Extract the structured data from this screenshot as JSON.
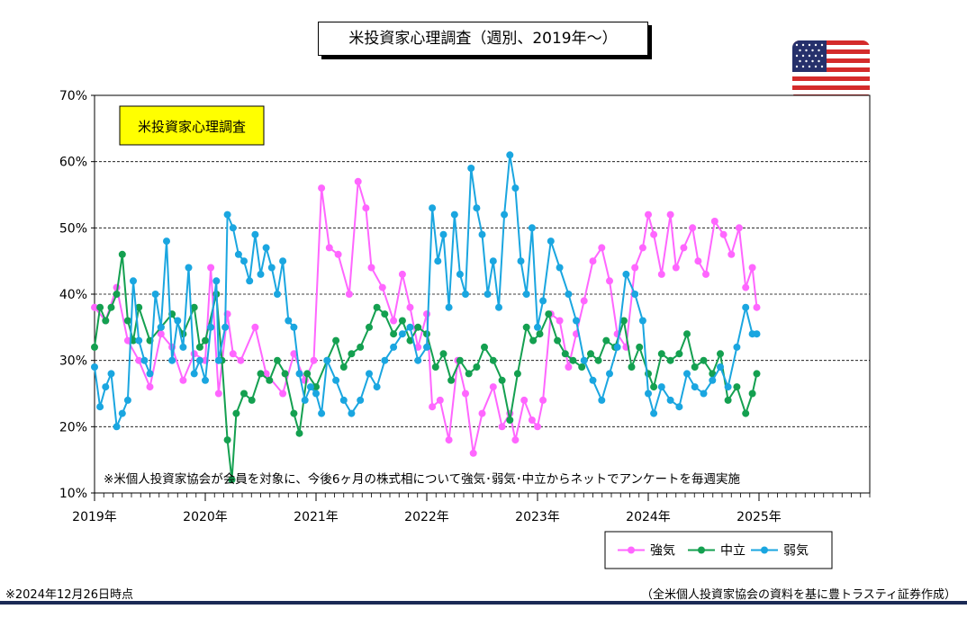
{
  "title": "米投資家心理調査（週別、2019年～）",
  "footer": {
    "date_note": "※2024年12月26日時点",
    "source_note": "（全米個人投資家協会の資料を基に豊トラスティ証券作成）"
  },
  "chart_data": {
    "type": "line",
    "inner_label": "米投資家心理調査",
    "annotation": "※米個人投資家協会が会員を対象に、今後6ヶ月の株式相について強気･弱気･中立からネットでアンケートを毎週実施",
    "ylim": [
      10,
      70
    ],
    "y_ticks": [
      10,
      20,
      30,
      40,
      50,
      60,
      70
    ],
    "y_tick_labels": [
      "10%",
      "20%",
      "30%",
      "40%",
      "50%",
      "60%",
      "70%"
    ],
    "x_range": [
      2019,
      2026
    ],
    "x_ticks": [
      2019,
      2020,
      2021,
      2022,
      2023,
      2024,
      2025
    ],
    "x_tick_labels": [
      "2019年",
      "2020年",
      "2021年",
      "2022年",
      "2023年",
      "2024年",
      "2025年"
    ],
    "grid": "horizontal-dashed",
    "legend_position": "bottom-right",
    "series": [
      {
        "name": "強気",
        "color": "#ff66ff",
        "points": [
          [
            2019.0,
            38
          ],
          [
            2019.1,
            36
          ],
          [
            2019.2,
            41
          ],
          [
            2019.3,
            33
          ],
          [
            2019.4,
            30
          ],
          [
            2019.5,
            26
          ],
          [
            2019.6,
            34
          ],
          [
            2019.7,
            32
          ],
          [
            2019.8,
            27
          ],
          [
            2019.9,
            31
          ],
          [
            2020.0,
            30
          ],
          [
            2020.05,
            44
          ],
          [
            2020.12,
            25
          ],
          [
            2020.2,
            37
          ],
          [
            2020.25,
            31
          ],
          [
            2020.32,
            30
          ],
          [
            2020.45,
            35
          ],
          [
            2020.55,
            28
          ],
          [
            2020.7,
            25
          ],
          [
            2020.8,
            31
          ],
          [
            2020.9,
            27
          ],
          [
            2020.98,
            30
          ],
          [
            2021.05,
            56
          ],
          [
            2021.12,
            47
          ],
          [
            2021.2,
            46
          ],
          [
            2021.3,
            40
          ],
          [
            2021.38,
            57
          ],
          [
            2021.45,
            53
          ],
          [
            2021.5,
            44
          ],
          [
            2021.6,
            41
          ],
          [
            2021.7,
            36
          ],
          [
            2021.78,
            43
          ],
          [
            2021.85,
            38
          ],
          [
            2021.92,
            32
          ],
          [
            2022.0,
            37
          ],
          [
            2022.05,
            23
          ],
          [
            2022.12,
            24
          ],
          [
            2022.2,
            18
          ],
          [
            2022.28,
            30
          ],
          [
            2022.35,
            25
          ],
          [
            2022.42,
            16
          ],
          [
            2022.5,
            22
          ],
          [
            2022.6,
            26
          ],
          [
            2022.68,
            20
          ],
          [
            2022.75,
            22
          ],
          [
            2022.8,
            18
          ],
          [
            2022.88,
            24
          ],
          [
            2022.95,
            21
          ],
          [
            2023.0,
            20
          ],
          [
            2023.05,
            24
          ],
          [
            2023.12,
            37
          ],
          [
            2023.2,
            36
          ],
          [
            2023.28,
            29
          ],
          [
            2023.35,
            34
          ],
          [
            2023.42,
            39
          ],
          [
            2023.5,
            45
          ],
          [
            2023.58,
            47
          ],
          [
            2023.65,
            42
          ],
          [
            2023.72,
            34
          ],
          [
            2023.8,
            32
          ],
          [
            2023.88,
            44
          ],
          [
            2023.95,
            47
          ],
          [
            2024.0,
            52
          ],
          [
            2024.05,
            49
          ],
          [
            2024.12,
            43
          ],
          [
            2024.2,
            52
          ],
          [
            2024.25,
            44
          ],
          [
            2024.32,
            47
          ],
          [
            2024.4,
            50
          ],
          [
            2024.45,
            45
          ],
          [
            2024.52,
            43
          ],
          [
            2024.6,
            51
          ],
          [
            2024.68,
            49
          ],
          [
            2024.75,
            46
          ],
          [
            2024.82,
            50
          ],
          [
            2024.88,
            41
          ],
          [
            2024.94,
            44
          ],
          [
            2024.98,
            38
          ]
        ]
      },
      {
        "name": "中立",
        "color": "#14a050",
        "points": [
          [
            2019.0,
            32
          ],
          [
            2019.05,
            38
          ],
          [
            2019.1,
            36
          ],
          [
            2019.15,
            38
          ],
          [
            2019.2,
            40
          ],
          [
            2019.25,
            46
          ],
          [
            2019.3,
            36
          ],
          [
            2019.35,
            33
          ],
          [
            2019.4,
            38
          ],
          [
            2019.5,
            33
          ],
          [
            2019.6,
            35
          ],
          [
            2019.7,
            37
          ],
          [
            2019.8,
            34
          ],
          [
            2019.9,
            38
          ],
          [
            2019.95,
            32
          ],
          [
            2020.0,
            33
          ],
          [
            2020.1,
            40
          ],
          [
            2020.15,
            30
          ],
          [
            2020.2,
            18
          ],
          [
            2020.24,
            12
          ],
          [
            2020.28,
            22
          ],
          [
            2020.35,
            25
          ],
          [
            2020.42,
            24
          ],
          [
            2020.5,
            28
          ],
          [
            2020.58,
            27
          ],
          [
            2020.65,
            30
          ],
          [
            2020.72,
            28
          ],
          [
            2020.8,
            22
          ],
          [
            2020.85,
            19
          ],
          [
            2020.92,
            28
          ],
          [
            2021.0,
            26
          ],
          [
            2021.1,
            30
          ],
          [
            2021.18,
            33
          ],
          [
            2021.25,
            29
          ],
          [
            2021.32,
            31
          ],
          [
            2021.4,
            32
          ],
          [
            2021.48,
            35
          ],
          [
            2021.55,
            38
          ],
          [
            2021.62,
            37
          ],
          [
            2021.7,
            34
          ],
          [
            2021.78,
            36
          ],
          [
            2021.85,
            33
          ],
          [
            2021.92,
            35
          ],
          [
            2022.0,
            34
          ],
          [
            2022.08,
            29
          ],
          [
            2022.15,
            31
          ],
          [
            2022.22,
            27
          ],
          [
            2022.3,
            30
          ],
          [
            2022.38,
            28
          ],
          [
            2022.45,
            29
          ],
          [
            2022.52,
            32
          ],
          [
            2022.6,
            30
          ],
          [
            2022.68,
            27
          ],
          [
            2022.75,
            21
          ],
          [
            2022.82,
            28
          ],
          [
            2022.9,
            35
          ],
          [
            2022.96,
            33
          ],
          [
            2023.02,
            34
          ],
          [
            2023.1,
            37
          ],
          [
            2023.18,
            33
          ],
          [
            2023.25,
            31
          ],
          [
            2023.32,
            30
          ],
          [
            2023.4,
            29
          ],
          [
            2023.48,
            31
          ],
          [
            2023.55,
            30
          ],
          [
            2023.62,
            33
          ],
          [
            2023.7,
            32
          ],
          [
            2023.78,
            36
          ],
          [
            2023.85,
            29
          ],
          [
            2023.92,
            32
          ],
          [
            2024.0,
            28
          ],
          [
            2024.05,
            26
          ],
          [
            2024.12,
            31
          ],
          [
            2024.2,
            30
          ],
          [
            2024.28,
            31
          ],
          [
            2024.35,
            34
          ],
          [
            2024.42,
            29
          ],
          [
            2024.5,
            30
          ],
          [
            2024.58,
            28
          ],
          [
            2024.65,
            31
          ],
          [
            2024.72,
            24
          ],
          [
            2024.8,
            26
          ],
          [
            2024.88,
            22
          ],
          [
            2024.94,
            25
          ],
          [
            2024.98,
            28
          ]
        ]
      },
      {
        "name": "弱気",
        "color": "#1aa6e0",
        "points": [
          [
            2019.0,
            29
          ],
          [
            2019.05,
            23
          ],
          [
            2019.1,
            26
          ],
          [
            2019.15,
            28
          ],
          [
            2019.2,
            20
          ],
          [
            2019.25,
            22
          ],
          [
            2019.3,
            24
          ],
          [
            2019.35,
            42
          ],
          [
            2019.4,
            33
          ],
          [
            2019.45,
            30
          ],
          [
            2019.5,
            28
          ],
          [
            2019.55,
            40
          ],
          [
            2019.6,
            35
          ],
          [
            2019.65,
            48
          ],
          [
            2019.7,
            30
          ],
          [
            2019.75,
            36
          ],
          [
            2019.8,
            32
          ],
          [
            2019.85,
            44
          ],
          [
            2019.9,
            28
          ],
          [
            2019.95,
            30
          ],
          [
            2020.0,
            27
          ],
          [
            2020.05,
            35
          ],
          [
            2020.1,
            42
          ],
          [
            2020.12,
            30
          ],
          [
            2020.18,
            35
          ],
          [
            2020.2,
            52
          ],
          [
            2020.25,
            50
          ],
          [
            2020.3,
            46
          ],
          [
            2020.35,
            45
          ],
          [
            2020.4,
            42
          ],
          [
            2020.45,
            49
          ],
          [
            2020.5,
            43
          ],
          [
            2020.55,
            47
          ],
          [
            2020.6,
            44
          ],
          [
            2020.65,
            40
          ],
          [
            2020.7,
            45
          ],
          [
            2020.75,
            36
          ],
          [
            2020.8,
            35
          ],
          [
            2020.85,
            28
          ],
          [
            2020.9,
            24
          ],
          [
            2020.95,
            26
          ],
          [
            2021.0,
            25
          ],
          [
            2021.05,
            22
          ],
          [
            2021.1,
            30
          ],
          [
            2021.18,
            27
          ],
          [
            2021.25,
            24
          ],
          [
            2021.32,
            22
          ],
          [
            2021.4,
            24
          ],
          [
            2021.48,
            28
          ],
          [
            2021.55,
            26
          ],
          [
            2021.62,
            30
          ],
          [
            2021.7,
            32
          ],
          [
            2021.78,
            34
          ],
          [
            2021.85,
            35
          ],
          [
            2021.92,
            30
          ],
          [
            2022.0,
            32
          ],
          [
            2022.05,
            53
          ],
          [
            2022.1,
            45
          ],
          [
            2022.15,
            49
          ],
          [
            2022.2,
            38
          ],
          [
            2022.25,
            52
          ],
          [
            2022.3,
            43
          ],
          [
            2022.35,
            40
          ],
          [
            2022.4,
            59
          ],
          [
            2022.45,
            53
          ],
          [
            2022.5,
            49
          ],
          [
            2022.55,
            40
          ],
          [
            2022.6,
            45
          ],
          [
            2022.65,
            38
          ],
          [
            2022.7,
            52
          ],
          [
            2022.75,
            61
          ],
          [
            2022.8,
            56
          ],
          [
            2022.85,
            45
          ],
          [
            2022.9,
            40
          ],
          [
            2022.95,
            50
          ],
          [
            2023.0,
            35
          ],
          [
            2023.05,
            39
          ],
          [
            2023.12,
            48
          ],
          [
            2023.2,
            44
          ],
          [
            2023.28,
            40
          ],
          [
            2023.35,
            36
          ],
          [
            2023.42,
            30
          ],
          [
            2023.5,
            27
          ],
          [
            2023.58,
            24
          ],
          [
            2023.65,
            28
          ],
          [
            2023.72,
            32
          ],
          [
            2023.8,
            43
          ],
          [
            2023.88,
            40
          ],
          [
            2023.95,
            36
          ],
          [
            2024.0,
            25
          ],
          [
            2024.05,
            22
          ],
          [
            2024.12,
            26
          ],
          [
            2024.2,
            24
          ],
          [
            2024.28,
            23
          ],
          [
            2024.35,
            28
          ],
          [
            2024.42,
            26
          ],
          [
            2024.5,
            25
          ],
          [
            2024.58,
            27
          ],
          [
            2024.65,
            29
          ],
          [
            2024.72,
            26
          ],
          [
            2024.8,
            32
          ],
          [
            2024.88,
            38
          ],
          [
            2024.94,
            34
          ],
          [
            2024.98,
            34
          ]
        ]
      }
    ]
  }
}
